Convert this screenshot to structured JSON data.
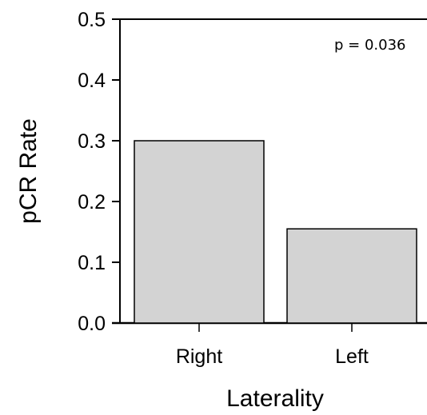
{
  "chart_data": {
    "type": "bar",
    "categories": [
      "Right",
      "Left"
    ],
    "values": [
      0.3,
      0.155
    ],
    "xlabel": "Laterality",
    "ylabel": "pCR Rate",
    "ylim": [
      0,
      0.5
    ],
    "yticks": [
      "0.0",
      "0.1",
      "0.2",
      "0.3",
      "0.4",
      "0.5"
    ],
    "annotation": "p = 0.036",
    "grid": false,
    "bar_color": "#d3d3d3",
    "bar_edge_color": "#000000"
  }
}
